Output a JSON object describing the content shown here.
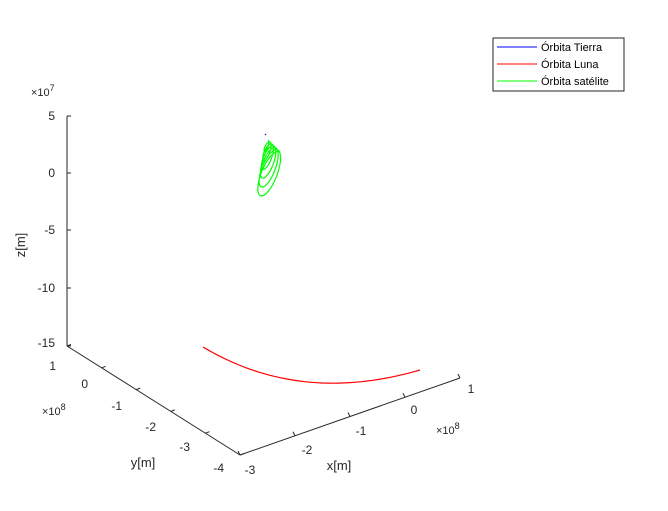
{
  "chart_data": {
    "type": "line3d",
    "xlabel": "x[m]",
    "ylabel": "y[m]",
    "zlabel": "z[m]",
    "x_multiplier": "×10^8",
    "y_multiplier": "×10^8",
    "z_multiplier": "×10^7",
    "x_ticks": [
      "-3",
      "-2",
      "-1",
      "0",
      "1"
    ],
    "y_ticks": [
      "1",
      "0",
      "-1",
      "-2",
      "-3",
      "-4"
    ],
    "z_ticks": [
      "5",
      "0",
      "-5",
      "-10",
      "-15"
    ],
    "xlim": [
      -3,
      1
    ],
    "ylim": [
      -4,
      1
    ],
    "zlim": [
      -15,
      5
    ],
    "grid": false,
    "legend_position": "top-right",
    "series": [
      {
        "name": "Órbita Tierra",
        "color": "#0000ff",
        "values": [
          [
            0.0,
            0.0,
            0.0
          ],
          [
            0.01,
            -0.005,
            0.0
          ]
        ]
      },
      {
        "name": "Órbita Luna",
        "color": "#ff0000",
        "values": [
          [
            -1.9,
            0.2,
            -15
          ],
          [
            -1.0,
            -0.8,
            -15
          ],
          [
            0.0,
            -2.0,
            -15
          ],
          [
            0.7,
            -3.0,
            -15
          ]
        ]
      },
      {
        "name": "Órbita satélite",
        "color": "#00ff00",
        "values": [
          [
            0.0,
            0.0,
            2.5
          ],
          [
            0.05,
            -0.1,
            -1.0
          ],
          [
            -0.05,
            0.1,
            5.0
          ]
        ]
      }
    ]
  }
}
